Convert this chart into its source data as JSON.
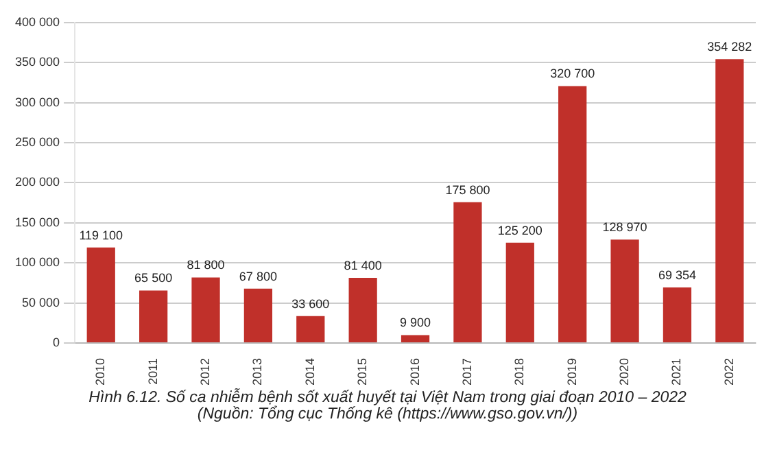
{
  "chart_data": {
    "type": "bar",
    "title": "Hình 6.12. Số ca nhiễm bệnh sốt xuất huyết tại Việt Nam trong giai đoạn 2010 – 2022",
    "annotations": [
      "(Nguồn: Tổng cục Thống kê (https://www.gso.gov.vn/))"
    ],
    "categories": [
      "2010",
      "2011",
      "2012",
      "2013",
      "2014",
      "2015",
      "2016",
      "2017",
      "2018",
      "2019",
      "2020",
      "2021",
      "2022"
    ],
    "values": [
      119100,
      65500,
      81800,
      67800,
      33600,
      81400,
      9900,
      175800,
      125200,
      320700,
      128970,
      69354,
      354282
    ],
    "value_labels": [
      "119 100",
      "65 500",
      "81 800",
      "67 800",
      "33 600",
      "81 400",
      "9 900",
      "175 800",
      "125 200",
      "320 700",
      "128 970",
      "69 354",
      "354 282"
    ],
    "color": "#c0302a",
    "ylim": [
      0,
      400000
    ],
    "yticks": [
      {
        "value": 0,
        "label": "0"
      },
      {
        "value": 50000,
        "label": "50 000"
      },
      {
        "value": 100000,
        "label": "100 000"
      },
      {
        "value": 150000,
        "label": "150 000"
      },
      {
        "value": 200000,
        "label": "200 000"
      },
      {
        "value": 250000,
        "label": "250 000"
      },
      {
        "value": 300000,
        "label": "300 000"
      },
      {
        "value": 350000,
        "label": "350 000"
      },
      {
        "value": 400000,
        "label": "400 000"
      }
    ],
    "grid": "y",
    "legend": false
  }
}
